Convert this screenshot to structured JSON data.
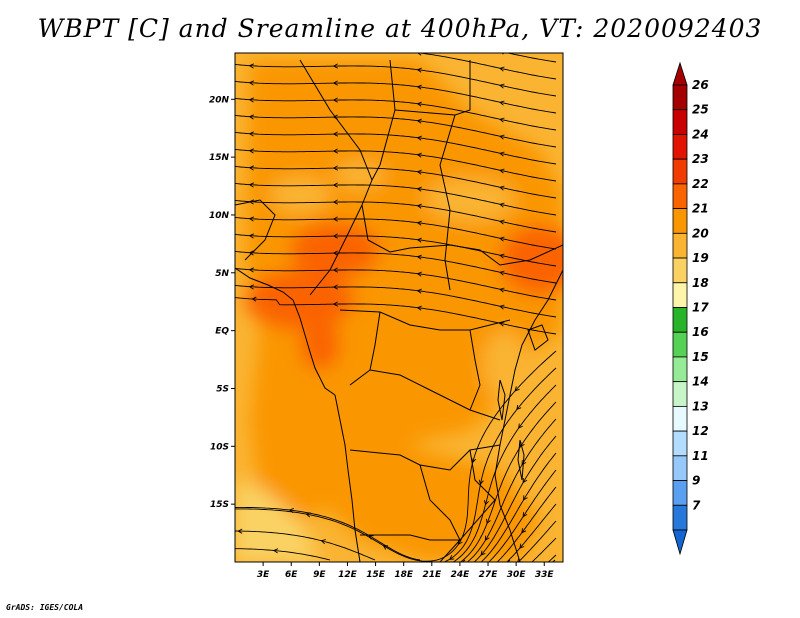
{
  "title": "WBPT [C] and Sreamline at 400hPa, VT: 2020092403",
  "footer": "GrADS: IGES/COLA",
  "map": {
    "lon_range": [
      0,
      35
    ],
    "lat_range": [
      -20,
      24
    ],
    "lat_ticks": [
      {
        "value": 20,
        "label": "20N"
      },
      {
        "value": 15,
        "label": "15N"
      },
      {
        "value": 10,
        "label": "10N"
      },
      {
        "value": 5,
        "label": "5N"
      },
      {
        "value": 0,
        "label": "EQ"
      },
      {
        "value": -5,
        "label": "5S"
      },
      {
        "value": -10,
        "label": "10S"
      },
      {
        "value": -15,
        "label": "15S"
      }
    ],
    "lon_ticks": [
      {
        "value": 3,
        "label": "3E"
      },
      {
        "value": 6,
        "label": "6E"
      },
      {
        "value": 9,
        "label": "9E"
      },
      {
        "value": 12,
        "label": "12E"
      },
      {
        "value": 15,
        "label": "15E"
      },
      {
        "value": 18,
        "label": "18E"
      },
      {
        "value": 21,
        "label": "21E"
      },
      {
        "value": 24,
        "label": "24E"
      },
      {
        "value": 27,
        "label": "27E"
      },
      {
        "value": 30,
        "label": "30E"
      },
      {
        "value": 33,
        "label": "33E"
      }
    ]
  },
  "colorbar": {
    "levels": [
      {
        "label": "26",
        "color": "#a50000"
      },
      {
        "label": "25",
        "color": "#c80000"
      },
      {
        "label": "24",
        "color": "#e11400"
      },
      {
        "label": "23",
        "color": "#f03c00"
      },
      {
        "label": "22",
        "color": "#fa6400"
      },
      {
        "label": "21",
        "color": "#fa9600"
      },
      {
        "label": "20",
        "color": "#fab432"
      },
      {
        "label": "19",
        "color": "#fad264"
      },
      {
        "label": "18",
        "color": "#fff5aa"
      },
      {
        "label": "17",
        "color": "#28b428"
      },
      {
        "label": "16",
        "color": "#55d255"
      },
      {
        "label": "15",
        "color": "#96eb96"
      },
      {
        "label": "14",
        "color": "#c8f5c8"
      },
      {
        "label": "13",
        "color": "#e6faff"
      },
      {
        "label": "12",
        "color": "#b4dcff"
      },
      {
        "label": "11",
        "color": "#96c8fa"
      },
      {
        "label": "9",
        "color": "#5aa0f0"
      },
      {
        "label": "7",
        "color": "#2878dc"
      }
    ],
    "bottom_color": "#1464d2"
  }
}
